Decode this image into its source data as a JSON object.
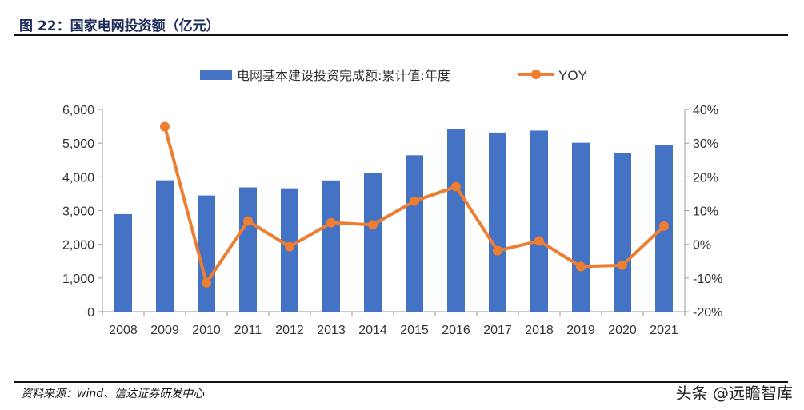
{
  "header": {
    "title": "图 22：国家电网投资额（亿元）"
  },
  "footer": {
    "source": "资料来源：wind、信达证券研发中心",
    "watermark": "头条 @远瞻智库"
  },
  "chart_data": {
    "type": "bar+line",
    "categories": [
      "2008",
      "2009",
      "2010",
      "2011",
      "2012",
      "2013",
      "2014",
      "2015",
      "2016",
      "2017",
      "2018",
      "2019",
      "2020",
      "2021"
    ],
    "series": [
      {
        "name": "电网基本建设投资完成额:累计值:年度",
        "type": "bar",
        "axis": "left",
        "color": "#4472c4",
        "values": [
          2895,
          3898,
          3448,
          3687,
          3661,
          3894,
          4118,
          4640,
          5431,
          5315,
          5373,
          5012,
          4699,
          4951
        ]
      },
      {
        "name": "YOY",
        "type": "line",
        "axis": "right",
        "color": "#ed7d31",
        "values": [
          null,
          34.9,
          -11.4,
          6.9,
          -0.7,
          6.4,
          5.8,
          12.8,
          17.1,
          -1.9,
          1.0,
          -6.6,
          -6.2,
          5.4
        ]
      }
    ],
    "left_axis": {
      "min": 0,
      "max": 6000,
      "ticks": [
        "0",
        "1,000",
        "2,000",
        "3,000",
        "4,000",
        "5,000",
        "6,000"
      ]
    },
    "right_axis": {
      "min": -20,
      "max": 40,
      "ticks": [
        "-20%",
        "-10%",
        "0%",
        "10%",
        "20%",
        "30%",
        "40%"
      ]
    },
    "legend": "top",
    "grid": false
  }
}
